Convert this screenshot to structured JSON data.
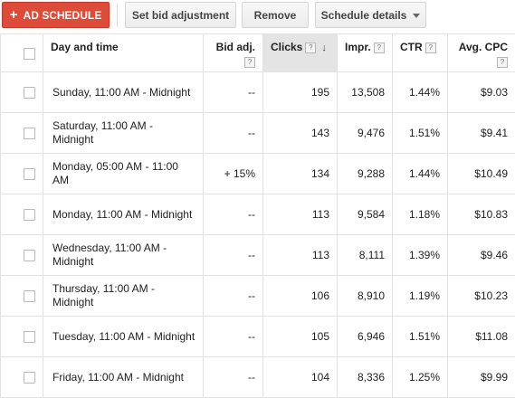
{
  "toolbar": {
    "add_schedule_label": "AD SCHEDULE",
    "set_bid_label": "Set bid adjustment",
    "remove_label": "Remove",
    "schedule_details_label": "Schedule details"
  },
  "table": {
    "columns": {
      "day_time": "Day and time",
      "bid_adj": "Bid adj.",
      "clicks": "Clicks",
      "impr": "Impr.",
      "ctr": "CTR",
      "avg_cpc": "Avg. CPC"
    },
    "help_mark": "?",
    "sort_mark": "↓",
    "sorted_column": "clicks",
    "rows": [
      {
        "day_time": "Sunday, 11:00 AM - Midnight",
        "bid_adj": "--",
        "clicks": "195",
        "impr": "13,508",
        "ctr": "1.44%",
        "avg_cpc": "$9.03"
      },
      {
        "day_time": "Saturday, 11:00 AM - Midnight",
        "bid_adj": "--",
        "clicks": "143",
        "impr": "9,476",
        "ctr": "1.51%",
        "avg_cpc": "$9.41"
      },
      {
        "day_time": "Monday, 05:00 AM - 11:00 AM",
        "bid_adj": "+ 15%",
        "clicks": "134",
        "impr": "9,288",
        "ctr": "1.44%",
        "avg_cpc": "$10.49"
      },
      {
        "day_time": "Monday, 11:00 AM - Midnight",
        "bid_adj": "--",
        "clicks": "113",
        "impr": "9,584",
        "ctr": "1.18%",
        "avg_cpc": "$10.83"
      },
      {
        "day_time": "Wednesday, 11:00 AM - Midnight",
        "bid_adj": "--",
        "clicks": "113",
        "impr": "8,111",
        "ctr": "1.39%",
        "avg_cpc": "$9.46"
      },
      {
        "day_time": "Thursday, 11:00 AM - Midnight",
        "bid_adj": "--",
        "clicks": "106",
        "impr": "8,910",
        "ctr": "1.19%",
        "avg_cpc": "$10.23"
      },
      {
        "day_time": "Tuesday, 11:00 AM - Midnight",
        "bid_adj": "--",
        "clicks": "105",
        "impr": "6,946",
        "ctr": "1.51%",
        "avg_cpc": "$11.08"
      },
      {
        "day_time": "Friday, 11:00 AM - Midnight",
        "bid_adj": "--",
        "clicks": "104",
        "impr": "8,336",
        "ctr": "1.25%",
        "avg_cpc": "$9.99"
      }
    ]
  },
  "colors": {
    "primary_button": "#dd4b39",
    "sorted_header": "#e4e4e4",
    "border": "#e2e2e2"
  }
}
